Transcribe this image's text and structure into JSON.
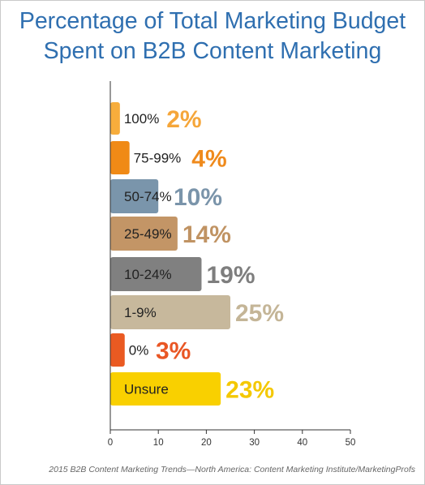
{
  "title_lines": [
    "Percentage of Total Marketing Budget",
    "Spent on B2B Content Marketing"
  ],
  "source": "2015 B2B Content Marketing Trends—North America: Content Marketing Institute/MarketingProfs",
  "chart_data": {
    "type": "bar",
    "orientation": "horizontal",
    "categories": [
      "100%",
      "75-99%",
      "50-74%",
      "25-49%",
      "10-24%",
      "1-9%",
      "0%",
      "Unsure"
    ],
    "values": [
      2,
      4,
      10,
      14,
      19,
      25,
      3,
      23
    ],
    "value_labels": [
      "2%",
      "4%",
      "10%",
      "14%",
      "19%",
      "25%",
      "3%",
      "23%"
    ],
    "colors": [
      "#f7ad3c",
      "#f08a16",
      "#7a95ab",
      "#c39566",
      "#808080",
      "#c7b89c",
      "#ea5a22",
      "#f9d000"
    ],
    "value_label_colors": [
      "#f5a63a",
      "#ef8a1c",
      "#7a94aa",
      "#c09363",
      "#7e7e7e",
      "#c4b597",
      "#e95624",
      "#f4c800"
    ],
    "category_label_colors": [
      "#222222",
      "#222222",
      "#222222",
      "#222222",
      "#222222",
      "#222222",
      "#222222",
      "#222222"
    ],
    "xlim": [
      0,
      50
    ],
    "xticks": [
      0,
      10,
      20,
      30,
      40,
      50
    ],
    "xlabel": "",
    "ylabel": "",
    "grid": false,
    "legend": "none"
  }
}
